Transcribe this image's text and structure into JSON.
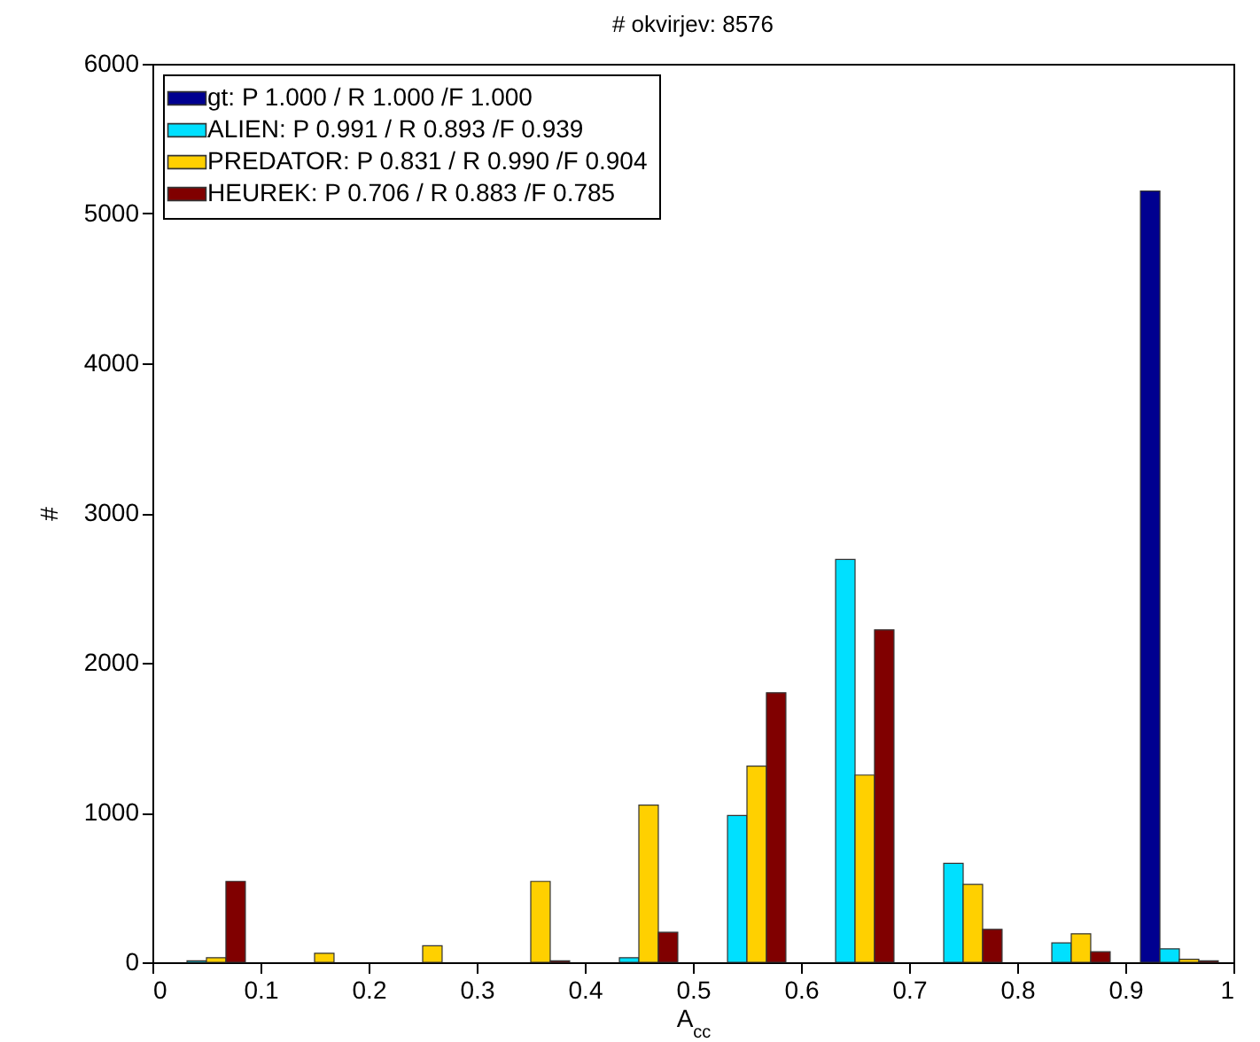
{
  "chart_data": {
    "type": "bar",
    "title": "# okvirjev: 8576",
    "xlabel": "A$_{cc}$",
    "ylabel": "#",
    "x": [
      0.05,
      0.15,
      0.25,
      0.35,
      0.45,
      0.55,
      0.65,
      0.75,
      0.85,
      0.95
    ],
    "series": [
      {
        "name": "gt: P 1.000 / R 1.000 /F 1.000",
        "color": "#000090",
        "values": [
          null,
          null,
          null,
          null,
          null,
          null,
          null,
          null,
          null,
          5150
        ]
      },
      {
        "name": "ALIEN: P 0.991 / R 0.893 /F 0.939",
        "color": "#00e0ff",
        "values": [
          10,
          null,
          null,
          null,
          30,
          980,
          2690,
          660,
          130,
          90
        ]
      },
      {
        "name": "PREDATOR: P 0.831 / R 0.990 /F 0.904",
        "color": "#ffd000",
        "values": [
          30,
          60,
          110,
          540,
          1050,
          1310,
          1250,
          520,
          190,
          20
        ]
      },
      {
        "name": "HEUREK: P 0.706 / R 0.883 /F 0.785",
        "color": "#800000",
        "values": [
          540,
          null,
          null,
          10,
          200,
          1800,
          2220,
          220,
          70,
          10
        ]
      }
    ],
    "xlim": [
      0,
      1
    ],
    "xticks": [
      0,
      0.1,
      0.2,
      0.3,
      0.4,
      0.5,
      0.6,
      0.7,
      0.8,
      0.9,
      1
    ],
    "ylim": [
      0,
      6000
    ],
    "yticks": [
      0,
      1000,
      2000,
      3000,
      4000,
      5000,
      6000
    ],
    "grid": false,
    "legend": "top left"
  }
}
